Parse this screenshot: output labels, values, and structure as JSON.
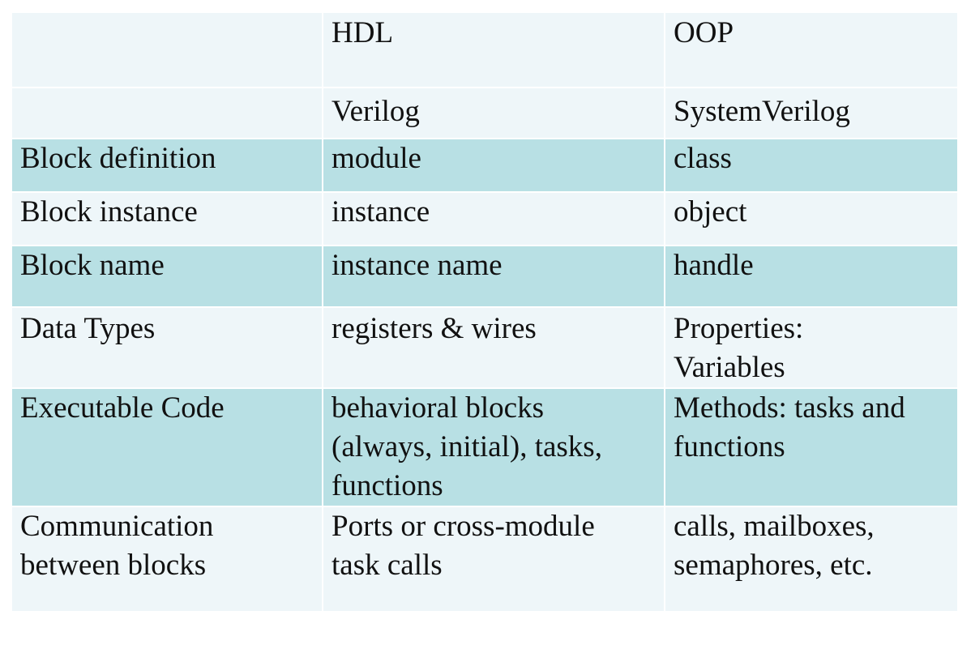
{
  "table": {
    "header_rows": [
      [
        "",
        "HDL",
        "OOP"
      ],
      [
        "",
        "Verilog",
        "SystemVerilog"
      ]
    ],
    "rows": [
      [
        "Block definition",
        "module",
        "class"
      ],
      [
        "Block instance",
        "instance",
        "object"
      ],
      [
        "Block name",
        "instance name",
        "handle"
      ],
      [
        "Data Types",
        "registers & wires",
        "Properties:\nVariables"
      ],
      [
        "Executable Code",
        "behavioral blocks\n(always, initial), tasks,\nfunctions",
        "Methods: tasks and\nfunctions"
      ],
      [
        "Communication\nbetween blocks",
        "Ports or cross-module\ntask calls",
        "calls, mailboxes,\nsemaphores, etc."
      ]
    ]
  },
  "colors": {
    "light_row": "#eef6f9",
    "teal_row": "#b8e0e4",
    "text": "#111111"
  }
}
